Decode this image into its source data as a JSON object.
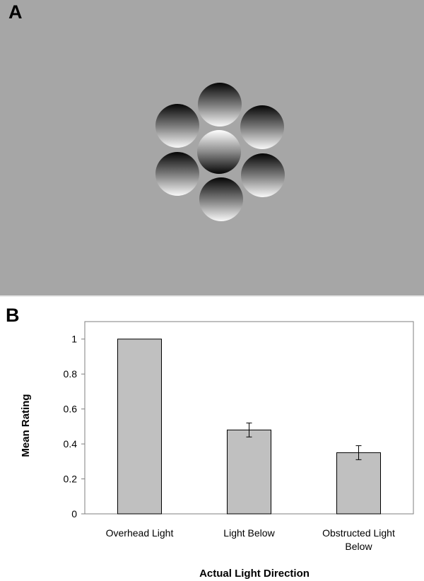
{
  "panels": {
    "a_label": "A",
    "b_label": "B"
  },
  "stimulus": {
    "background_color": "#a6a6a6",
    "disc_count": 7,
    "center_disc_shading": "light-top-dark-bottom",
    "surround_disc_shading": "dark-top-light-bottom"
  },
  "chart_data": {
    "type": "bar",
    "categories": [
      [
        "Overhead Light"
      ],
      [
        "Light Below"
      ],
      [
        "Obstructed Light",
        "Below"
      ]
    ],
    "values": [
      1.0,
      0.48,
      0.35
    ],
    "error_bars": [
      0,
      0.04,
      0.04
    ],
    "title": "",
    "xlabel": "Actual Light Direction",
    "ylabel": "Mean Rating",
    "ylim": [
      0,
      1.1
    ],
    "yticks": [
      "0",
      "0.2",
      "0.4",
      "0.6",
      "0.8",
      "1"
    ],
    "ytick_values": [
      0,
      0.2,
      0.4,
      0.6,
      0.8,
      1
    ],
    "bar_color": "#c0c0c0",
    "grid": false,
    "legend": "none"
  }
}
